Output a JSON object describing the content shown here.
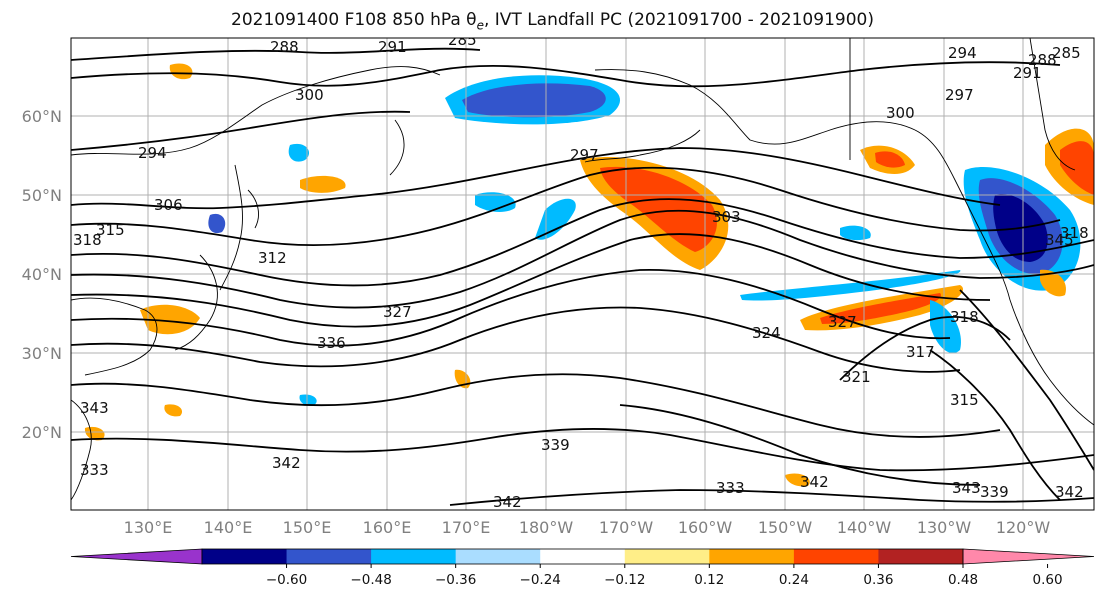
{
  "title": {
    "prefix": "2021091400 F108 850 hPa ",
    "theta": "θ",
    "theta_sub": "e",
    "suffix": ", IVT Landfall PC (2021091700 - 2021091900)"
  },
  "map": {
    "lat_labels": [
      "60°N",
      "50°N",
      "40°N",
      "30°N",
      "20°N"
    ],
    "lon_labels": [
      "130°E",
      "140°E",
      "150°E",
      "160°E",
      "170°E",
      "180°W",
      "170°W",
      "160°W",
      "150°W",
      "140°W",
      "130°W",
      "120°W"
    ],
    "contour_labels": [
      "288",
      "291",
      "285",
      "300",
      "294",
      "306",
      "318",
      "315",
      "312",
      "327",
      "336",
      "297",
      "303",
      "300",
      "297",
      "294",
      "291",
      "288",
      "285",
      "324",
      "327",
      "318",
      "321",
      "317",
      "315",
      "339",
      "342",
      "333",
      "342",
      "343",
      "339",
      "342",
      "342",
      "343",
      "333",
      "345",
      "318"
    ]
  },
  "colorbar": {
    "colors": [
      "#9933cc",
      "#000088",
      "#3355cc",
      "#00bbff",
      "#aaddff",
      "#ffffff",
      "#ffee88",
      "#ffa500",
      "#ff4400",
      "#b22222",
      "#ff88aa"
    ],
    "ticks": [
      "−0.60",
      "−0.48",
      "−0.36",
      "−0.24",
      "−0.12",
      "0.12",
      "0.24",
      "0.36",
      "0.48",
      "0.60"
    ]
  }
}
